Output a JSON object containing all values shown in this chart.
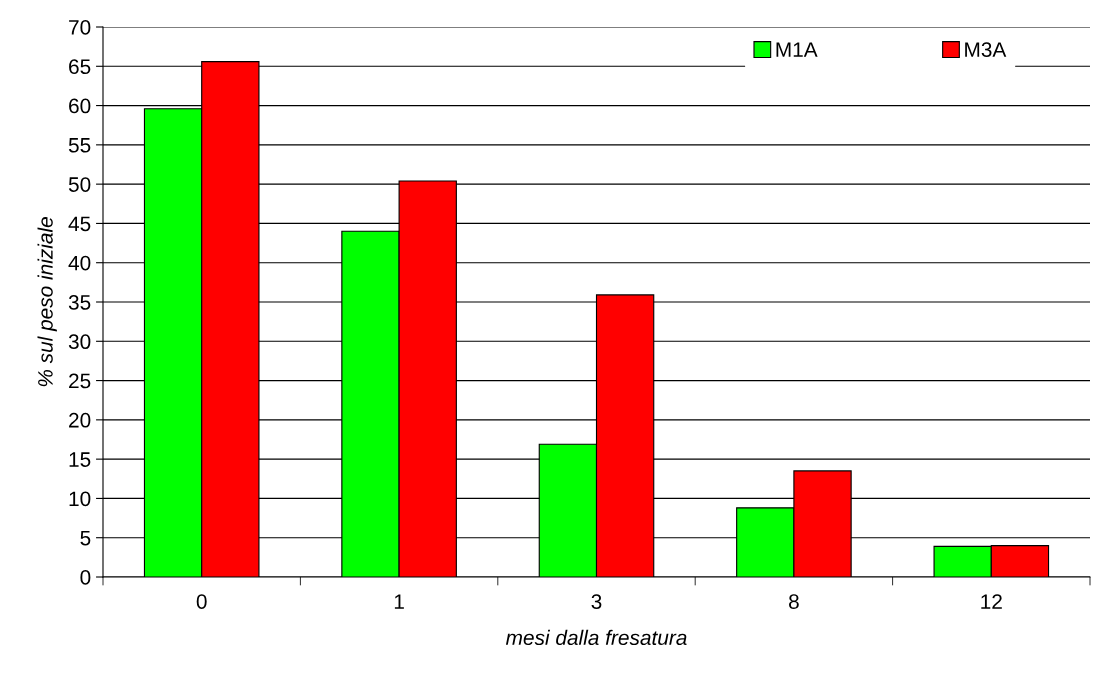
{
  "chart_data": {
    "type": "bar",
    "xlabel": "mesi dalla fresatura",
    "ylabel": "% sul peso iniziale",
    "categories": [
      "0",
      "1",
      "3",
      "8",
      "12"
    ],
    "series": [
      {
        "name": "M1A",
        "color": "#00ff00",
        "values": [
          59.6,
          44.0,
          16.9,
          8.8,
          3.9
        ]
      },
      {
        "name": "M3A",
        "color": "#ff0000",
        "values": [
          65.6,
          50.4,
          35.9,
          13.5,
          4.0
        ]
      }
    ],
    "ylim": [
      0,
      70
    ],
    "yticks": [
      0,
      5,
      10,
      15,
      20,
      25,
      30,
      35,
      40,
      45,
      50,
      55,
      60,
      65,
      70
    ],
    "grid": "y",
    "legend": "top right"
  }
}
